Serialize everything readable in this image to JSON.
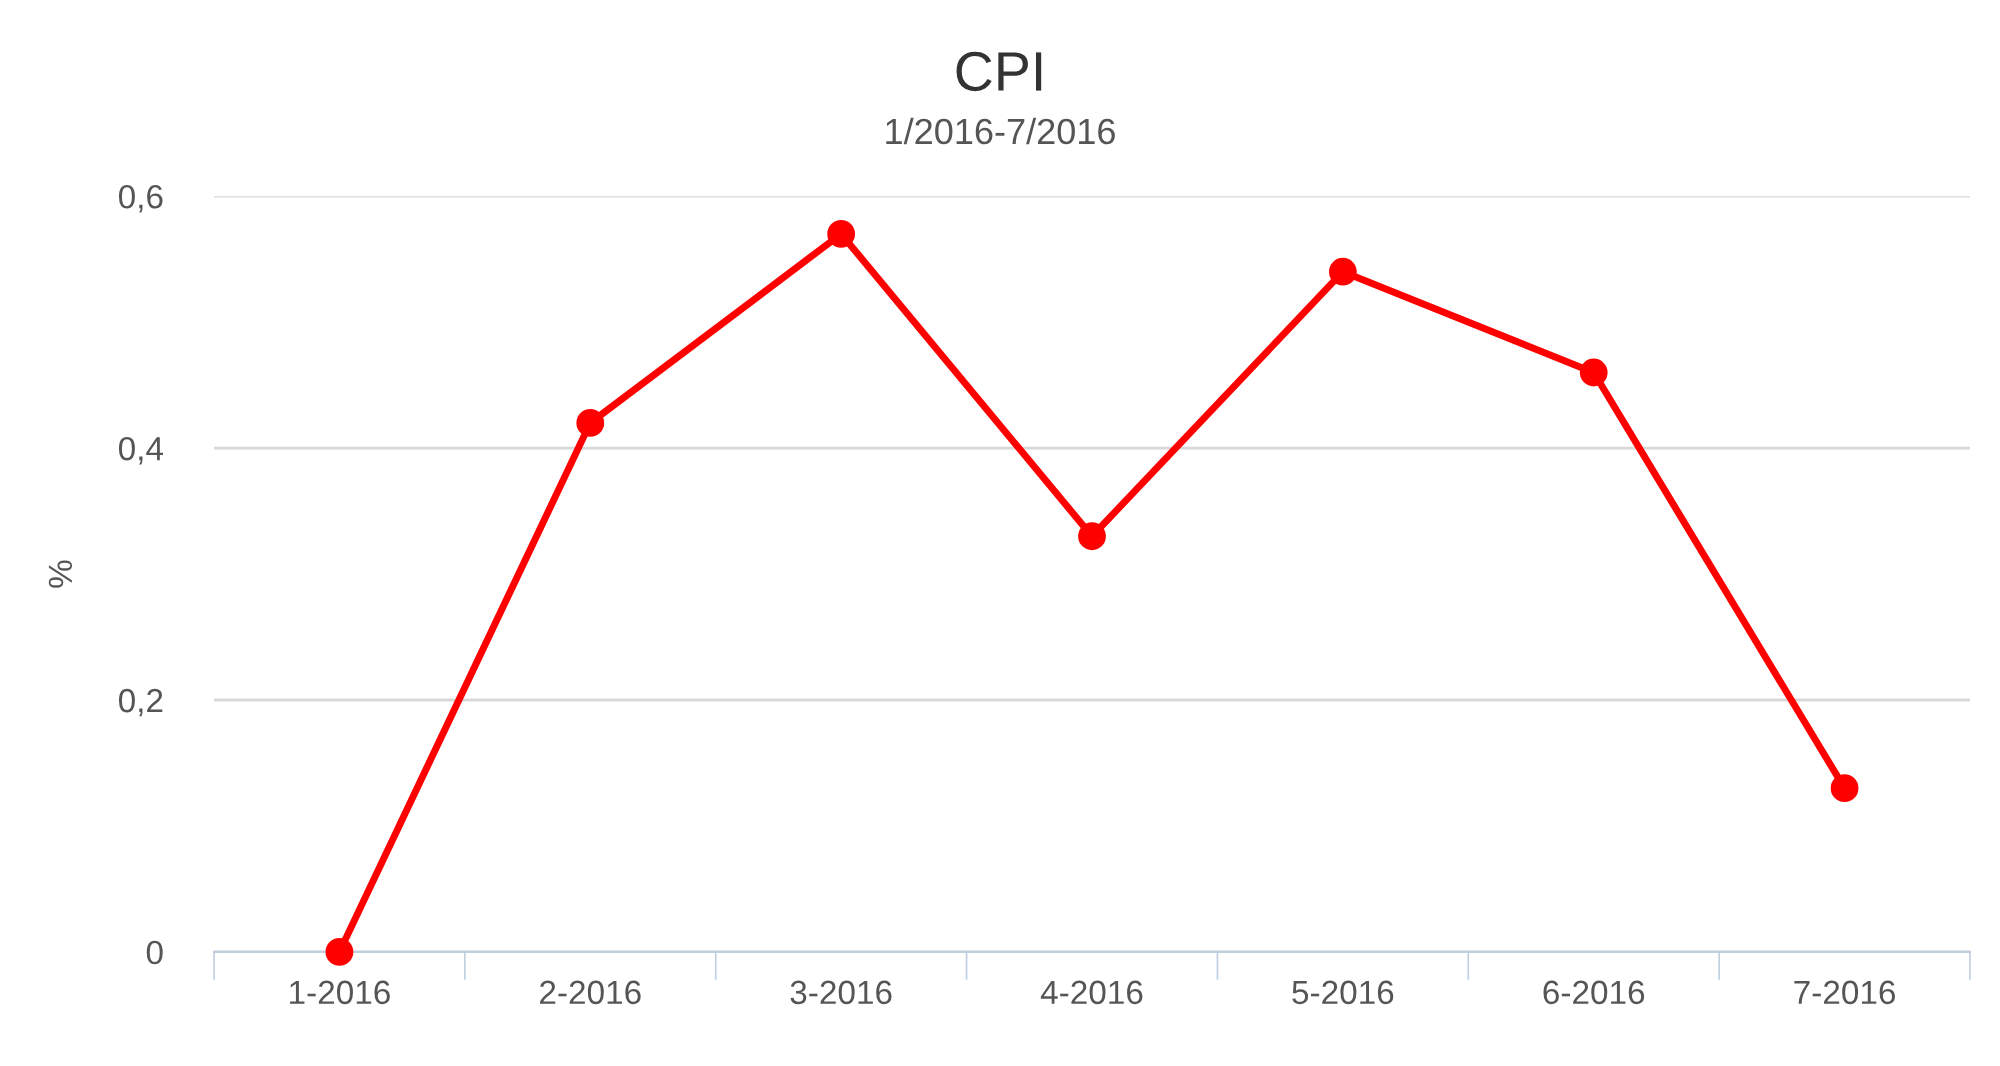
{
  "chart_data": {
    "type": "line",
    "title": "CPI",
    "subtitle": "1/2016-7/2016",
    "ylabel": "%",
    "categories": [
      "1-2016",
      "2-2016",
      "3-2016",
      "4-2016",
      "5-2016",
      "6-2016",
      "7-2016"
    ],
    "series": [
      {
        "color": "#ff0000",
        "values": [
          0,
          0.42,
          0.57,
          0.33,
          0.54,
          0.46,
          0.13
        ]
      }
    ],
    "ylim": [
      0,
      0.6
    ],
    "yticks": [
      0,
      {
        "value": 0.2,
        "label": "0,2"
      },
      {
        "value": 0.4,
        "label": "0,4"
      },
      {
        "value": 0.6,
        "label": "0,6"
      }
    ],
    "grid": "y",
    "marker": "circle",
    "line_style": "solid",
    "legend": false
  }
}
